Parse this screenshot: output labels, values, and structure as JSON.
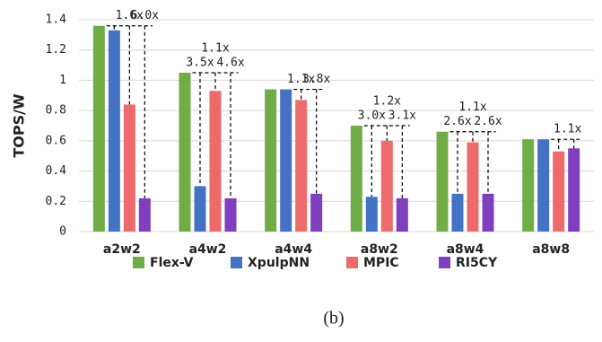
{
  "chart_data": {
    "type": "bar",
    "caption": "(b)",
    "ylabel": "TOPS/W",
    "categories": [
      "a2w2",
      "a4w2",
      "a4w4",
      "a8w2",
      "a8w4",
      "a8w8"
    ],
    "series": [
      {
        "name": "Flex-V",
        "color": "#70ad47",
        "values": [
          1.36,
          1.05,
          0.94,
          0.7,
          0.66,
          0.61
        ]
      },
      {
        "name": "XpulpNN",
        "color": "#4472c4",
        "values": [
          1.33,
          0.3,
          0.94,
          0.23,
          0.25,
          0.61
        ]
      },
      {
        "name": "MPIC",
        "color": "#ef6b6b",
        "values": [
          0.84,
          0.93,
          0.87,
          0.6,
          0.59,
          0.53
        ]
      },
      {
        "name": "RI5CY",
        "color": "#7f3fbf",
        "values": [
          0.22,
          0.22,
          0.25,
          0.22,
          0.25,
          0.55
        ]
      }
    ],
    "annotations": [
      [
        null,
        null,
        "1.6x",
        "6.0x"
      ],
      [
        null,
        "3.5x",
        "1.1x",
        "4.6x"
      ],
      [
        null,
        null,
        "1.1x",
        "3.8x"
      ],
      [
        null,
        "3.0x",
        "1.2x",
        "3.1x"
      ],
      [
        null,
        "2.6x",
        "1.1x",
        "2.6x"
      ],
      [
        null,
        null,
        "1.1x",
        null
      ]
    ],
    "ylim": [
      0,
      1.4
    ],
    "yticks": [
      0,
      0.2,
      0.4,
      0.6,
      0.8,
      1,
      1.2,
      1.4
    ],
    "grid": true
  }
}
